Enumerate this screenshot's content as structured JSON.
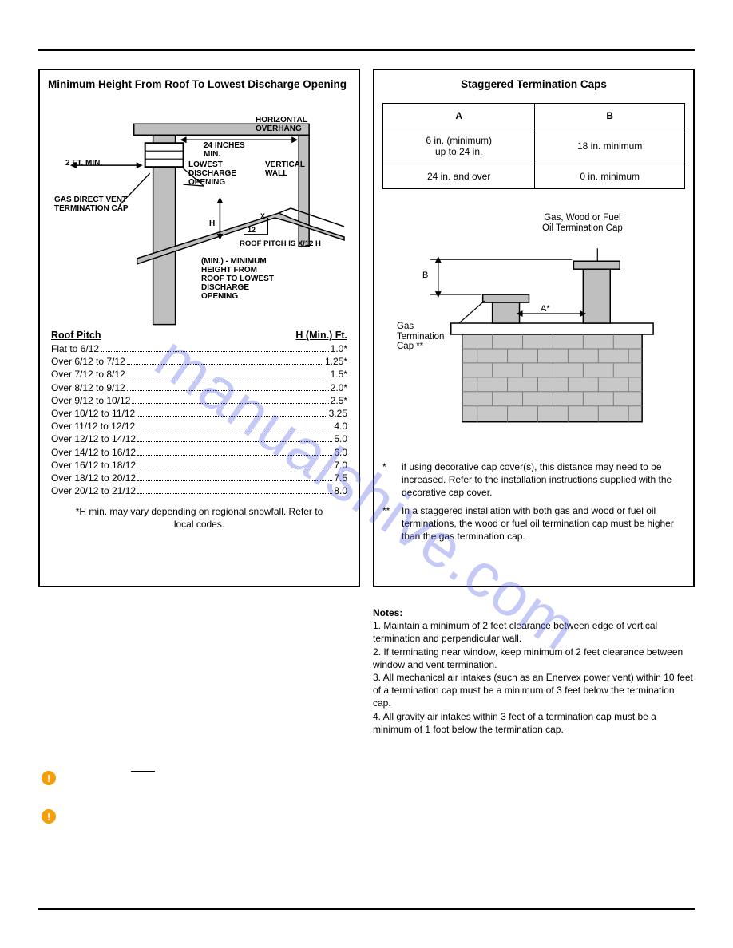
{
  "colors": {
    "border": "#000000",
    "text": "#000000",
    "watermark": "rgba(90,100,230,0.35)",
    "warn_bg": "#f59e0b",
    "grey_fill": "#bfbfbf",
    "brick_fill": "#c8c8c8",
    "brick_line": "#7a7a7a"
  },
  "watermark_text": "manualshive.com",
  "left_panel": {
    "title": "Minimum Height From Roof To Lowest Discharge Opening",
    "diagram_labels": {
      "horizontal_overhang": "HORIZONTAL\nOVERHANG",
      "twenty_four_min": "24 INCHES\nMIN.",
      "two_ft_min": "2 FT. MIN.",
      "lowest_discharge": "LOWEST\nDISCHARGE\nOPENING",
      "vertical_wall": "VERTICAL\nWALL",
      "gas_direct_vent": "GAS DIRECT VENT\nTERMINATION CAP",
      "roof_pitch_formula": "ROOF PITCH IS  X/12 H",
      "min_height_note": "(MIN.) - MINIMUM\nHEIGHT FROM\nROOF TO LOWEST\nDISCHARGE\nOPENING",
      "h": "H",
      "twelve": "12",
      "x": "X"
    },
    "table_header": {
      "left": "Roof Pitch",
      "right": "H (Min.) Ft."
    },
    "rows": [
      {
        "pitch": "Flat to 6/12",
        "h": "1.0*"
      },
      {
        "pitch": "Over 6/12 to 7/12",
        "h": "1.25*"
      },
      {
        "pitch": "Over 7/12 to 8/12",
        "h": "1.5*"
      },
      {
        "pitch": "Over 8/12 to 9/12",
        "h": "2.0*"
      },
      {
        "pitch": "Over 9/12 to 10/12",
        "h": "2.5*"
      },
      {
        "pitch": "Over 10/12 to 11/12",
        "h": "3.25"
      },
      {
        "pitch": "Over 11/12 to 12/12",
        "h": "4.0"
      },
      {
        "pitch": "Over 12/12 to 14/12",
        "h": "5.0"
      },
      {
        "pitch": "Over 14/12 to 16/12",
        "h": "6.0"
      },
      {
        "pitch": "Over 16/12 to 18/12",
        "h": "7.0"
      },
      {
        "pitch": "Over 18/12 to 20/12",
        "h": "7.5"
      },
      {
        "pitch": "Over 20/12 to 21/12",
        "h": "8.0"
      }
    ],
    "snow_note": "*H min. may vary depending on regional snowfall. Refer to local codes."
  },
  "right_panel": {
    "title": "Staggered Termination Caps",
    "table": {
      "headers": [
        "A",
        "B"
      ],
      "rows": [
        [
          "6 in. (minimum)\nup to 24 in.",
          "18 in. minimum"
        ],
        [
          "24 in. and over",
          "0 in. minimum"
        ]
      ]
    },
    "diagram_labels": {
      "cap_right": "Gas, Wood or Fuel\nOil Termination Cap",
      "gas_cap_left": "Gas\nTermination\nCap **",
      "a": "A*",
      "b": "B"
    },
    "footnotes": [
      {
        "mark": "*",
        "text": "if using decorative cap cover(s), this distance may need to be increased. Refer to the installation instructions supplied with the decorative cap cover."
      },
      {
        "mark": "**",
        "text": "In a staggered installation with both gas and wood or fuel oil terminations, the wood or fuel oil termination cap must be higher than the gas termination cap."
      }
    ]
  },
  "notes": {
    "header": "Notes:",
    "items": [
      "Maintain a minimum of 2 feet clearance between edge of vertical termination and perpendicular wall.",
      "If terminating near window, keep minimum of 2 feet clearance between window and vent termination.",
      "All mechanical air intakes (such as an Enervex power vent) within 10 feet of a termination cap must be a minimum of 3 feet below the termination cap.",
      "All gravity air intakes within 3 feet of a termination cap must be a minimum of 1 foot below the termination cap."
    ]
  }
}
